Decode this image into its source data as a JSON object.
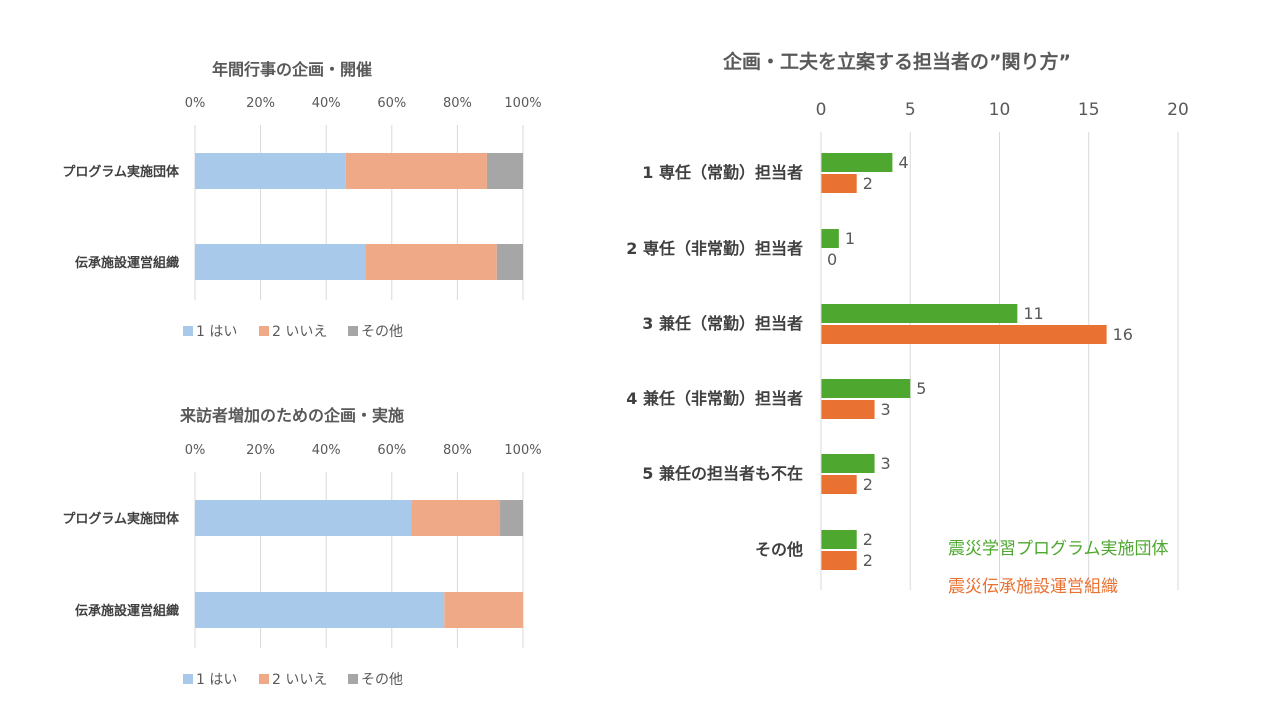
{
  "chart_data": [
    {
      "type": "bar",
      "orientation": "horizontal",
      "stacked": "percent",
      "title": "年間行事の企画・開催",
      "categories": [
        "プログラム実施団体",
        "伝承施設運営組織"
      ],
      "xlim": [
        0,
        100
      ],
      "ticks": [
        "0%",
        "20%",
        "40%",
        "60%",
        "80%",
        "100%"
      ],
      "grid": true,
      "legend_position": "bottom",
      "series": [
        {
          "name": "1 はい",
          "color": "#a9c9eb",
          "values": [
            46,
            52
          ]
        },
        {
          "name": "2 いいえ",
          "color": "#f0a987",
          "values": [
            43,
            40
          ]
        },
        {
          "name": "その他",
          "color": "#a6a6a6",
          "values": [
            11,
            8
          ]
        }
      ]
    },
    {
      "type": "bar",
      "orientation": "horizontal",
      "stacked": "percent",
      "title": "来訪者増加のための企画・実施",
      "categories": [
        "プログラム実施団体",
        "伝承施設運営組織"
      ],
      "xlim": [
        0,
        100
      ],
      "ticks": [
        "0%",
        "20%",
        "40%",
        "60%",
        "80%",
        "100%"
      ],
      "grid": true,
      "legend_position": "bottom",
      "series": [
        {
          "name": "1 はい",
          "color": "#a9c9eb",
          "values": [
            66,
            76
          ]
        },
        {
          "name": "2 いいえ",
          "color": "#f0a987",
          "values": [
            27,
            24
          ]
        },
        {
          "name": "その他",
          "color": "#a6a6a6",
          "values": [
            7,
            0
          ]
        }
      ]
    },
    {
      "type": "bar",
      "orientation": "horizontal",
      "title": "企画・工夫を立案する担当者の”関り方”",
      "categories": [
        "1 専任（常勤）担当者",
        "2 専任（非常勤）担当者",
        "3 兼任（常勤）担当者",
        "4 兼任（非常勤）担当者",
        "5 兼任の担当者も不在",
        "その他"
      ],
      "xlim": [
        0,
        20
      ],
      "ticks": [
        "0",
        "5",
        "10",
        "15",
        "20"
      ],
      "grid": true,
      "legend_position": "bottom-right",
      "series": [
        {
          "name": "震災学習プログラム実施団体",
          "color": "#4ea72e",
          "values": [
            4,
            1,
            11,
            5,
            3,
            2
          ]
        },
        {
          "name": "震災伝承施設運営組織",
          "color": "#e97132",
          "values": [
            2,
            0,
            16,
            3,
            2,
            2
          ]
        }
      ]
    }
  ]
}
